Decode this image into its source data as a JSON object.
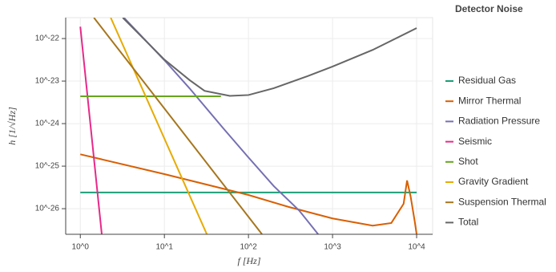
{
  "chart_data": {
    "type": "line",
    "xscale": "log",
    "yscale": "log",
    "grid": true,
    "x_label": "f [Hz]",
    "y_label": "h [1/√Hz]",
    "legend_title": "Detector Noise",
    "legend_position": "right",
    "xlim": [
      0.67,
      15500
    ],
    "ylim": [
      2.5e-27,
      3.1e-22
    ],
    "xticks": [
      {
        "value": 1,
        "label": "10^0"
      },
      {
        "value": 10,
        "label": "10^1"
      },
      {
        "value": 100,
        "label": "10^2"
      },
      {
        "value": 1000,
        "label": "10^3"
      },
      {
        "value": 10000,
        "label": "10^4"
      }
    ],
    "yticks": [
      {
        "value": 1e-22,
        "label": "10^-22"
      },
      {
        "value": 1e-23,
        "label": "10^-23"
      },
      {
        "value": 1e-24,
        "label": "10^-24"
      },
      {
        "value": 1e-25,
        "label": "10^-25"
      },
      {
        "value": 1e-26,
        "label": "10^-26"
      }
    ],
    "series": [
      {
        "name": "Residual Gas",
        "color": "#1b9e77",
        "x": [
          1,
          10000
        ],
        "values": [
          2.4e-26,
          2.4e-26
        ]
      },
      {
        "name": "Mirror Thermal",
        "color": "#d95f02",
        "x": [
          1,
          10,
          100,
          300,
          1000,
          3000,
          5000,
          7000,
          7700,
          8500,
          9500,
          10000
        ],
        "values": [
          1.9e-25,
          6.5e-26,
          2.1e-26,
          1.1e-26,
          5.9e-27,
          4e-27,
          4.6e-27,
          1.3e-26,
          4.6e-26,
          1.9e-26,
          5e-27,
          2.5e-27
        ]
      },
      {
        "name": "Radiation Pressure",
        "color": "#7570b3",
        "x": [
          3.3,
          10,
          20,
          50,
          100,
          200,
          400,
          675
        ],
        "values": [
          3.1e-22,
          3.1e-23,
          6.7e-24,
          7.8e-25,
          1.6e-25,
          3.4e-26,
          9.1e-27,
          2.5e-27
        ]
      },
      {
        "name": "Seismic",
        "color": "#e7298a",
        "x": [
          1,
          1.8
        ],
        "values": [
          1.9e-22,
          2.5e-27
        ]
      },
      {
        "name": "Shot",
        "color": "#66a61e",
        "x": [
          1,
          47
        ],
        "values": [
          4.4e-24,
          4.4e-24
        ]
      },
      {
        "name": "Gravity Gradient",
        "color": "#e6ab02",
        "x": [
          2.3,
          32
        ],
        "values": [
          3.1e-22,
          2.5e-27
        ]
      },
      {
        "name": "Suspension Thermal",
        "color": "#a6761d",
        "x": [
          1.45,
          145
        ],
        "values": [
          3.1e-22,
          2.5e-27
        ]
      },
      {
        "name": "Total",
        "color": "#666666",
        "x": [
          3.2,
          10,
          20,
          30,
          60,
          100,
          200,
          500,
          1000,
          3000,
          10000
        ],
        "values": [
          3.1e-22,
          3.2e-23,
          1.05e-23,
          5.9e-24,
          4.5e-24,
          4.7e-24,
          6.8e-24,
          1.3e-23,
          2.2e-23,
          5.4e-23,
          1.76e-22
        ]
      }
    ]
  }
}
